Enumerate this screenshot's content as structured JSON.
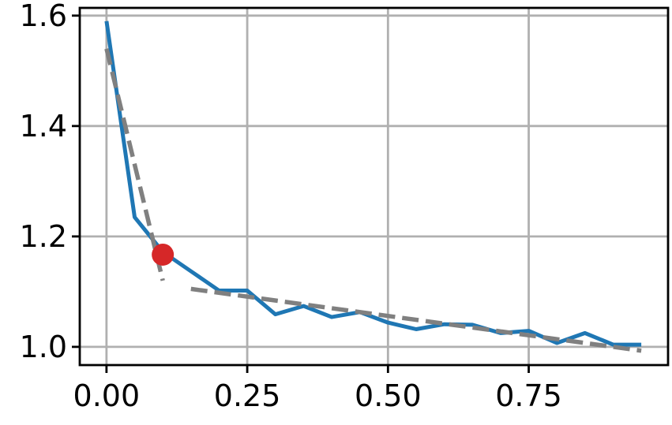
{
  "chart_data": {
    "type": "line",
    "title": "",
    "xlabel": "",
    "ylabel": "",
    "xlim": [
      -0.0475,
      0.9975
    ],
    "ylim": [
      0.967,
      1.614
    ],
    "grid": true,
    "x_ticks": [
      0.0,
      0.25,
      0.5,
      0.75
    ],
    "x_tick_labels": [
      "0.00",
      "0.25",
      "0.50",
      "0.75"
    ],
    "y_ticks": [
      1.0,
      1.2,
      1.4,
      1.6
    ],
    "y_tick_labels": [
      "1.0",
      "1.2",
      "1.4",
      "1.6"
    ],
    "series": [
      {
        "kind": "line",
        "color": "#1f77b4",
        "style": "solid",
        "x": [
          0.0,
          0.05,
          0.1,
          0.15,
          0.2,
          0.25,
          0.3,
          0.35,
          0.4,
          0.45,
          0.5,
          0.55,
          0.6,
          0.65,
          0.7,
          0.75,
          0.8,
          0.85,
          0.9,
          0.95
        ],
        "y": [
          1.59,
          1.235,
          1.172,
          1.137,
          1.102,
          1.102,
          1.059,
          1.074,
          1.054,
          1.063,
          1.044,
          1.032,
          1.041,
          1.04,
          1.025,
          1.029,
          1.007,
          1.025,
          1.004,
          1.004
        ]
      },
      {
        "kind": "line",
        "color": "#808080",
        "style": "dashed",
        "x": [
          0.0,
          0.1
        ],
        "y": [
          1.54,
          1.12
        ]
      },
      {
        "kind": "line",
        "color": "#808080",
        "style": "dashed",
        "x": [
          0.15,
          0.95
        ],
        "y": [
          1.105,
          0.993
        ]
      },
      {
        "kind": "marker",
        "color": "#d62728",
        "x": [
          0.1
        ],
        "y": [
          1.167
        ]
      }
    ]
  }
}
